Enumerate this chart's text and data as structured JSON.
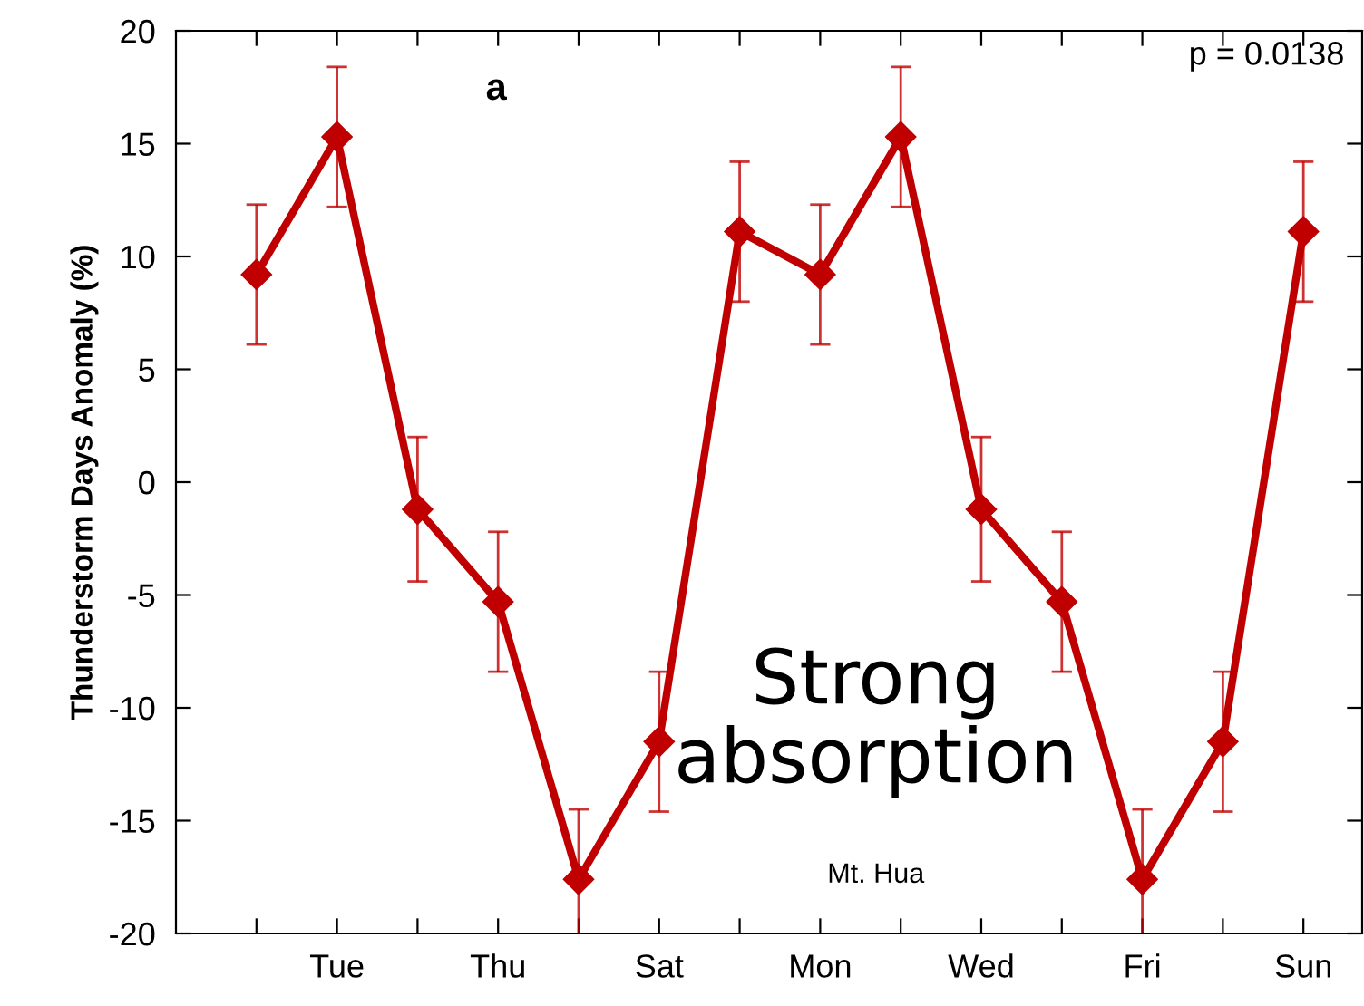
{
  "chart_data": {
    "type": "line",
    "ylabel": "Thunderstorm Days Anomaly (%)",
    "categories": [
      null,
      "Tue",
      null,
      "Thu",
      null,
      "Sat",
      null,
      "Mon",
      null,
      "Wed",
      null,
      "Fri",
      null,
      "Sun"
    ],
    "series": [
      {
        "color": "#c00000",
        "values": [
          9.2,
          15.3,
          -1.2,
          -5.3,
          -17.6,
          -11.5,
          11.1,
          9.2,
          15.3,
          -1.2,
          -5.3,
          -17.6,
          -11.5,
          11.1
        ],
        "errors": [
          3.1,
          3.1,
          3.2,
          3.1,
          3.1,
          3.1,
          3.1,
          3.1,
          3.1,
          3.2,
          3.1,
          3.1,
          3.1,
          3.1
        ]
      }
    ],
    "ylim": [
      -20,
      20
    ],
    "yticks": [
      -20,
      -15,
      -10,
      -5,
      0,
      5,
      10,
      15,
      20
    ],
    "marker": "diamond",
    "line_style": "solid",
    "grid": false,
    "legend": false,
    "annotations": [
      "a",
      "p = 0.0138",
      "Strong absorption",
      "Mt. Hua"
    ]
  }
}
